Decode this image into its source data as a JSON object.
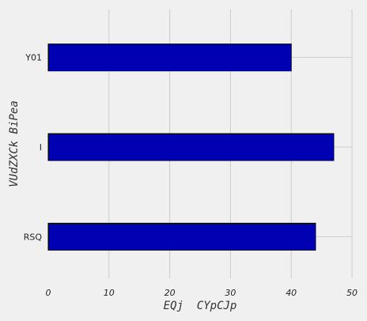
{
  "chart_data": {
    "type": "bar",
    "orientation": "horizontal",
    "categories": [
      "Y01",
      "I",
      "RSQ"
    ],
    "values": [
      40,
      47,
      44
    ],
    "xlabel": "EQj  CYpCJp",
    "ylabel": "VUdZXCk BiPea",
    "xlim": [
      0,
      50
    ],
    "xticks": [
      0,
      10,
      20,
      30,
      40,
      50
    ],
    "grid": true,
    "bar_color": "#0000b3",
    "edge_color": "#000000",
    "background": "#f0f0f0",
    "grid_color": "#cbcbcb"
  }
}
